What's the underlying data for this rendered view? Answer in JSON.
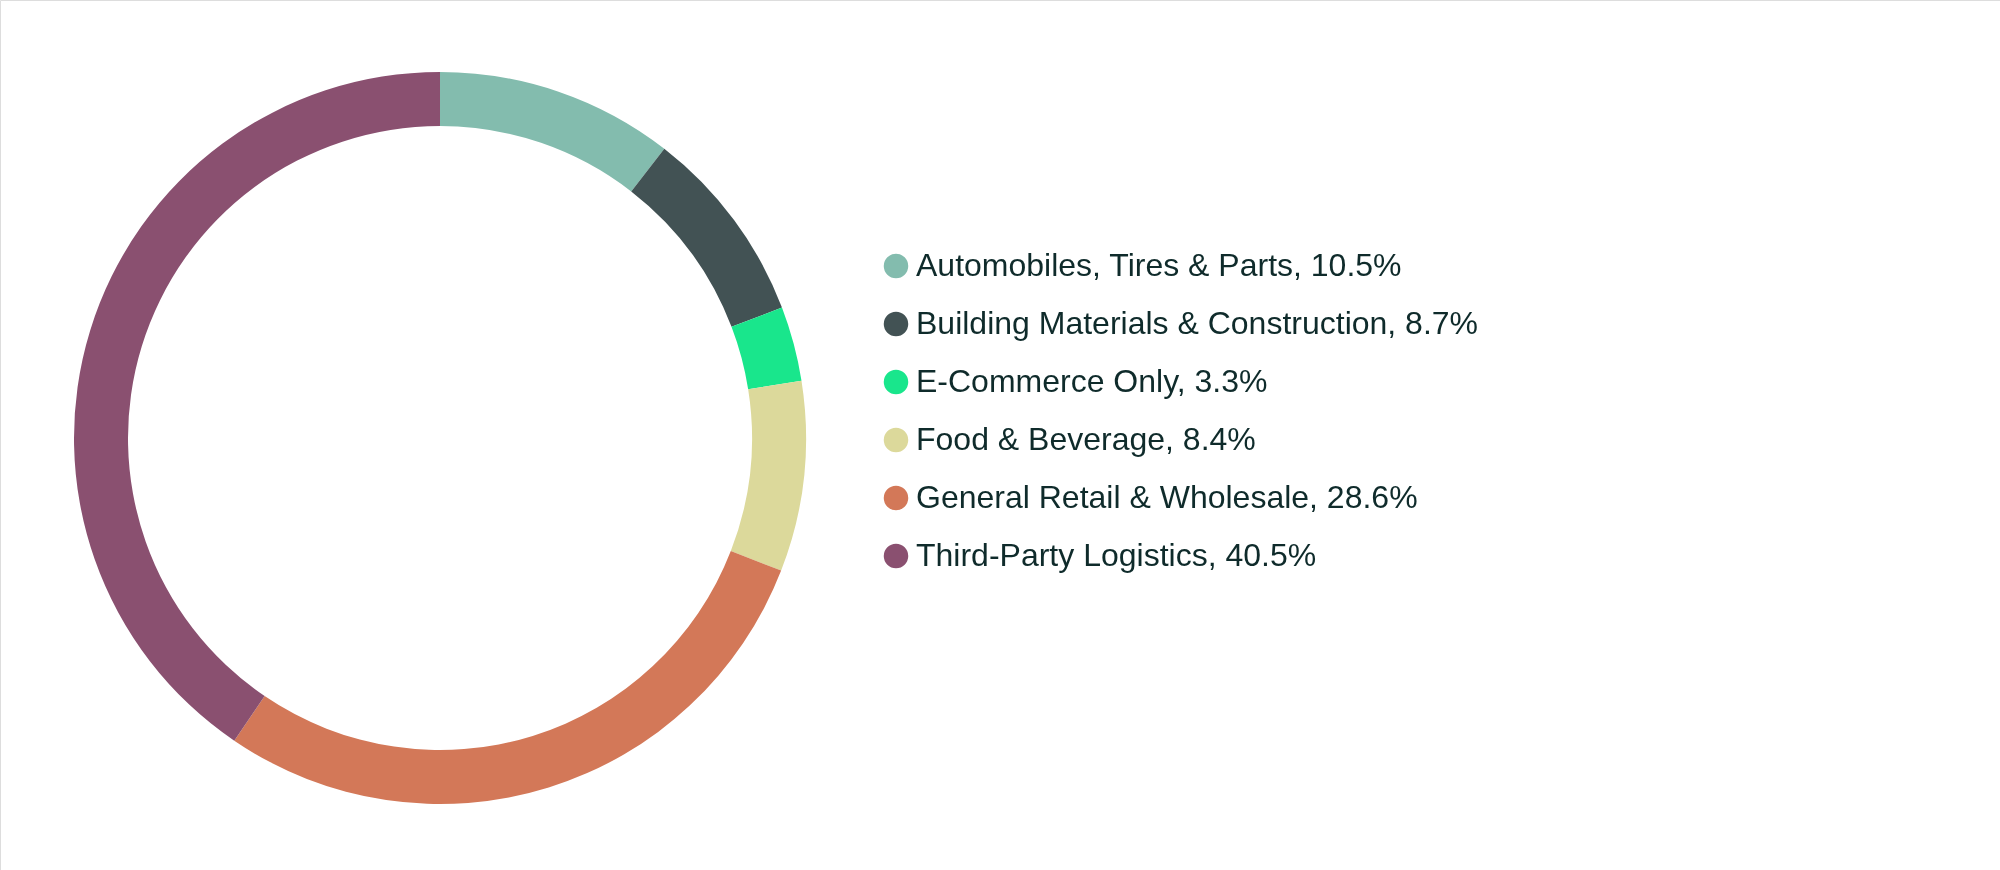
{
  "chart_data": {
    "type": "donut",
    "categories": [
      "Automobiles, Tires & Parts, 10.5%",
      "Building Materials & Construction, 8.7%",
      "E-Commerce Only, 3.3%",
      "Food & Beverage, 8.4%",
      "General Retail & Wholesale, 28.6%",
      "Third-Party Logistics, 40.5%"
    ],
    "values": [
      10.5,
      8.7,
      3.3,
      8.4,
      28.6,
      40.5
    ],
    "colors": [
      "#83bcae",
      "#425254",
      "#19e68c",
      "#dcd99b",
      "#d37858",
      "#8a5070"
    ],
    "legend": "right"
  }
}
